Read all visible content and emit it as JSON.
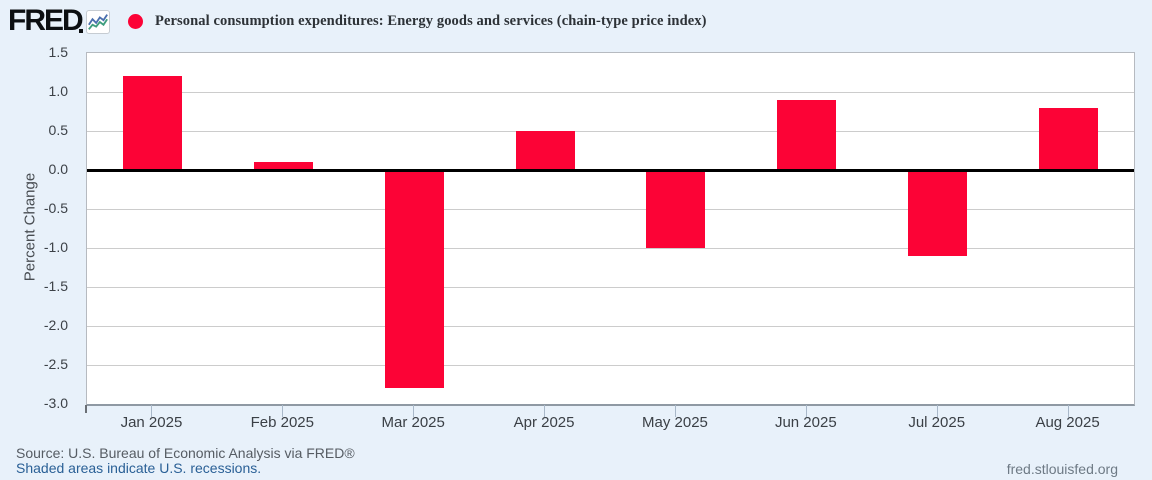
{
  "header": {
    "logo_text": "FRED",
    "legend_marker_color": "#fc0336",
    "series_title": "Personal consumption expenditures: Energy goods and services (chain-type price index)"
  },
  "chart_data": {
    "type": "bar",
    "title": "Personal consumption expenditures: Energy goods and services (chain-type price index)",
    "categories": [
      "Jan 2025",
      "Feb 2025",
      "Mar 2025",
      "Apr 2025",
      "May 2025",
      "Jun 2025",
      "Jul 2025",
      "Aug 2025"
    ],
    "values": [
      1.2,
      0.1,
      -2.8,
      0.5,
      -1.0,
      0.9,
      -1.1,
      0.8
    ],
    "xlabel": "",
    "ylabel": "Percent Change",
    "ylim": [
      -3.0,
      1.5
    ],
    "yticks": [
      "1.5",
      "1.0",
      "0.5",
      "0.0",
      "-0.5",
      "-1.0",
      "-1.5",
      "-2.0",
      "-2.5",
      "-3.0"
    ],
    "bar_color": "#fc0336",
    "zero_line_color": "#000000",
    "gridline_color": "#cccccc",
    "grid": true,
    "legend_position": "top"
  },
  "footer": {
    "source_line": "Source: U.S. Bureau of Economic Analysis via FRED®",
    "recession_note": "Shaded areas indicate U.S. recessions.",
    "site_link": "fred.stlouisfed.org"
  }
}
